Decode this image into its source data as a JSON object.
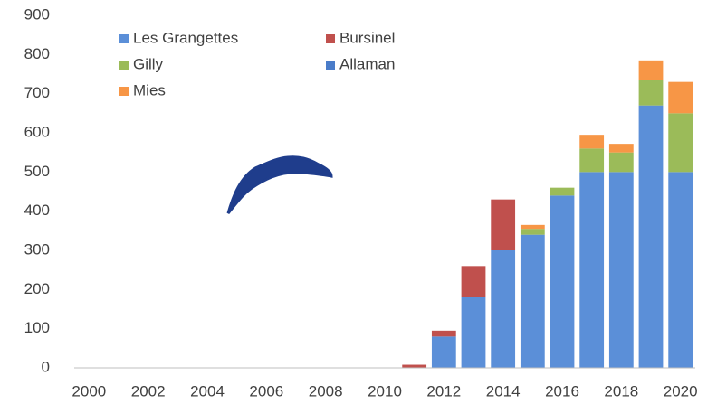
{
  "chart_data": {
    "type": "stacked-bar",
    "categories": [
      "2000",
      null,
      "2002",
      null,
      "2004",
      null,
      "2006",
      null,
      "2008",
      null,
      "2010",
      null,
      "2012",
      null,
      "2014",
      null,
      "2016",
      null,
      "2018",
      null,
      "2020"
    ],
    "series": [
      {
        "name": "Les Grangettes",
        "color": "#5b8fd8",
        "values": [
          0,
          0,
          0,
          0,
          0,
          0,
          0,
          0,
          0,
          0,
          0,
          0,
          80,
          180,
          300,
          340,
          440,
          500,
          500,
          670,
          500
        ]
      },
      {
        "name": "Bursinel",
        "color": "#c0504d",
        "values": [
          0,
          0,
          0,
          0,
          0,
          0,
          0,
          0,
          0,
          0,
          0,
          8,
          15,
          80,
          130,
          0,
          0,
          0,
          0,
          0,
          0
        ]
      },
      {
        "name": "Gilly",
        "color": "#9bbb59",
        "values": [
          0,
          0,
          0,
          0,
          0,
          0,
          0,
          0,
          0,
          0,
          0,
          0,
          0,
          0,
          0,
          15,
          20,
          60,
          50,
          65,
          150
        ]
      },
      {
        "name": "Allaman",
        "color": "#4a7cc9",
        "values": [
          0,
          0,
          0,
          0,
          0,
          0,
          0,
          0,
          0,
          0,
          0,
          0,
          0,
          0,
          0,
          0,
          0,
          0,
          0,
          0,
          0
        ]
      },
      {
        "name": "Mies",
        "color": "#f79646",
        "values": [
          0,
          0,
          0,
          0,
          0,
          0,
          0,
          0,
          0,
          0,
          0,
          0,
          0,
          0,
          0,
          10,
          0,
          35,
          22,
          50,
          80
        ]
      }
    ],
    "ylim": [
      0,
      900
    ],
    "yticks": [
      0,
      100,
      200,
      300,
      400,
      500,
      600,
      700,
      800,
      900
    ],
    "grid": false
  }
}
